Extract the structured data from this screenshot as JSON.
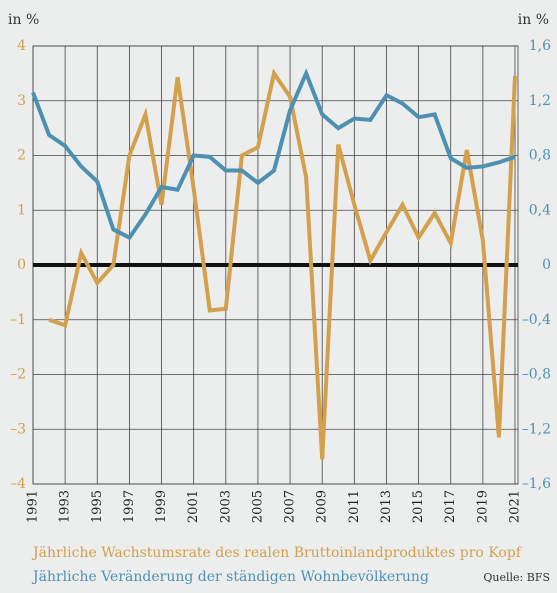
{
  "chart_data": {
    "type": "line",
    "y_label": "in %",
    "y2_label": "in %",
    "source": "Quelle: BFS",
    "x": [
      1991,
      1992,
      1993,
      1994,
      1995,
      1996,
      1997,
      1998,
      1999,
      2000,
      2001,
      2002,
      2003,
      2004,
      2005,
      2006,
      2007,
      2008,
      2009,
      2010,
      2011,
      2012,
      2013,
      2014,
      2015,
      2016,
      2017,
      2018,
      2019,
      2020,
      2021
    ],
    "xlim": [
      1991,
      2021
    ],
    "xticks": [
      1991,
      1993,
      1995,
      1997,
      1999,
      2001,
      2003,
      2005,
      2007,
      2009,
      2011,
      2013,
      2015,
      2017,
      2019,
      2021
    ],
    "ylim": [
      -4,
      4
    ],
    "yticks": [
      {
        "value": -4,
        "label": "–4"
      },
      {
        "value": -3,
        "label": "–3"
      },
      {
        "value": -2,
        "label": "–2"
      },
      {
        "value": -1,
        "label": "–1"
      },
      0,
      1,
      2,
      3,
      4
    ],
    "y2lim": [
      -1.6,
      1.6
    ],
    "y2ticks": [
      {
        "value": -1.6,
        "label": "–1,6"
      },
      {
        "value": -1.2,
        "label": "–1,2"
      },
      {
        "value": -0.8,
        "label": "–0,8"
      },
      {
        "value": -0.4,
        "label": "–0,4"
      },
      0,
      {
        "value": 0.4,
        "label": "0,4"
      },
      {
        "value": 0.8,
        "label": "0,8"
      },
      {
        "value": 1.2,
        "label": "1,2"
      },
      {
        "value": 1.6,
        "label": "1,6"
      }
    ],
    "grid": true,
    "zero_line": true,
    "series": [
      {
        "name": "Jährliche Wachstumsrate des realen Bruttoinlandproduktes pro Kopf",
        "color": "#d3a04d",
        "axis": "y",
        "values": [
          null,
          -1.0,
          -1.1,
          0.22,
          -0.33,
          0.0,
          2.0,
          2.75,
          1.1,
          3.43,
          1.4,
          -0.83,
          -0.8,
          2.0,
          2.15,
          3.5,
          3.07,
          1.6,
          -3.55,
          2.2,
          1.1,
          0.08,
          0.6,
          1.1,
          0.5,
          0.95,
          0.4,
          2.1,
          0.45,
          -3.15,
          3.45
        ]
      },
      {
        "name": "Jährliche Veränderung der ständigen Wohnbevölkerung",
        "color": "#4e90b2",
        "axis": "y2",
        "values": [
          1.26,
          0.95,
          0.87,
          0.72,
          0.61,
          0.26,
          0.2,
          0.37,
          0.57,
          0.55,
          0.8,
          0.79,
          0.69,
          0.69,
          0.6,
          0.69,
          1.13,
          1.4,
          1.1,
          1.0,
          1.07,
          1.06,
          1.24,
          1.18,
          1.08,
          1.1,
          0.78,
          0.71,
          0.72,
          0.75,
          0.79
        ]
      }
    ]
  }
}
